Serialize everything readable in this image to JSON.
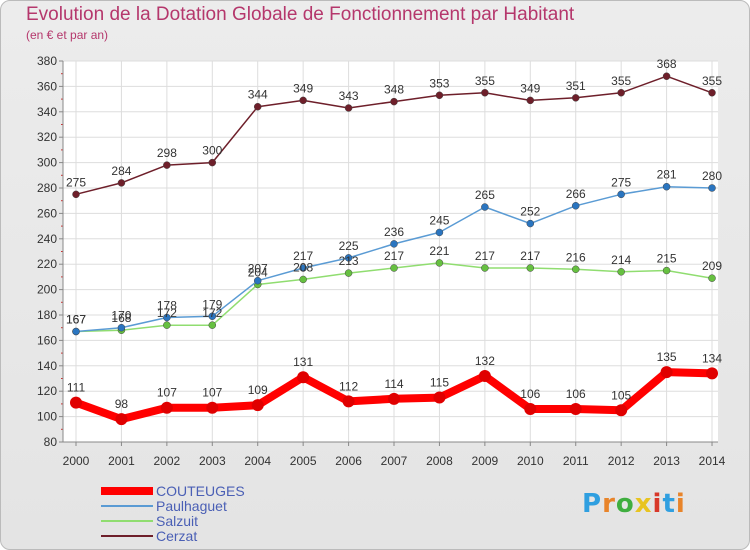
{
  "title": "Evolution de la Dotation Globale de Fonctionnement par Habitant",
  "subtitle": "(en € et par an)",
  "brand": {
    "text": "Proxiti",
    "letter_colors": [
      "#2f9fe0",
      "#e8842a",
      "#3fae3f",
      "#e8c421",
      "#d8382a",
      "#2f9fe0",
      "#e8842a"
    ]
  },
  "chart_data": {
    "type": "line",
    "title": "Evolution de la Dotation Globale de Fonctionnement par Habitant",
    "subtitle": "(en € et par an)",
    "xlabel": "",
    "ylabel": "",
    "x": [
      "2000",
      "2001",
      "2002",
      "2003",
      "2004",
      "2005",
      "2006",
      "2007",
      "2008",
      "2009",
      "2010",
      "2011",
      "2012",
      "2013",
      "2014"
    ],
    "ylim": [
      80,
      380
    ],
    "yticks": [
      80,
      100,
      120,
      140,
      160,
      180,
      200,
      220,
      240,
      260,
      280,
      300,
      320,
      340,
      360,
      380
    ],
    "grid": true,
    "legend": "bottom-left",
    "series": [
      {
        "name": "COUTEUGES",
        "color": "#ff0000",
        "marker_color": "#e00000",
        "bold": true,
        "values": [
          111,
          98,
          107,
          107,
          109,
          131,
          112,
          114,
          115,
          132,
          106,
          106,
          105,
          135,
          134
        ]
      },
      {
        "name": "Paulhaguet",
        "color": "#5a9bd4",
        "marker_color": "#2a75c0",
        "bold": false,
        "values": [
          167,
          170,
          178,
          179,
          207,
          217,
          225,
          236,
          245,
          265,
          252,
          266,
          275,
          281,
          280
        ]
      },
      {
        "name": "Salzuit",
        "color": "#90dd70",
        "marker_color": "#66c040",
        "bold": false,
        "values": [
          167,
          168,
          172,
          172,
          204,
          208,
          213,
          217,
          221,
          217,
          217,
          216,
          214,
          215,
          209
        ]
      },
      {
        "name": "Cerzat",
        "color": "#6e1f2a",
        "marker_color": "#6e1f2a",
        "bold": false,
        "values": [
          275,
          284,
          298,
          300,
          344,
          349,
          343,
          348,
          353,
          355,
          349,
          351,
          355,
          368,
          355
        ]
      }
    ]
  }
}
